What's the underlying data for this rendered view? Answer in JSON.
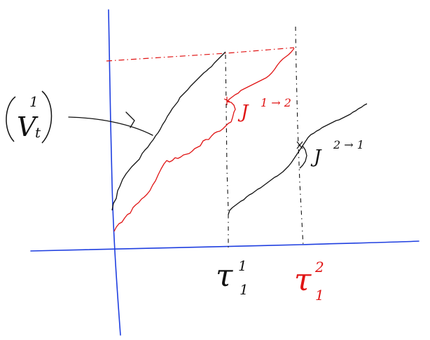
{
  "colors": {
    "axis": "#1f3fe0",
    "process_black": "#111111",
    "process_red": "#e01414",
    "background": "#ffffff"
  },
  "labels": {
    "v_letter": "V",
    "v_superscript": "1",
    "v_subscript": "t",
    "jump_12_letter": "J",
    "jump_12_super": "1 → 2",
    "jump_21_letter": "J",
    "jump_21_super": "2 → 1",
    "tau1_letter": "τ",
    "tau1_super": "1",
    "tau1_sub": "1",
    "tau2_letter": "τ",
    "tau2_super": "2",
    "tau2_sub": "1"
  }
}
